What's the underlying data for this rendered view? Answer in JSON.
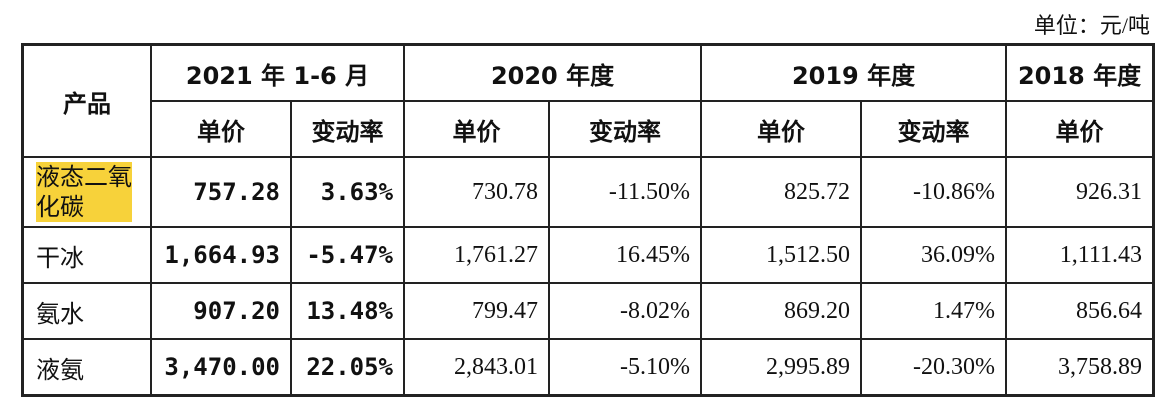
{
  "unit": "单位：元/吨",
  "table": {
    "header_groups": [
      "产品",
      "2021 年 1-6 月",
      "2020 年度",
      "2019 年度",
      "2018 年度"
    ],
    "subheaders": [
      "单价",
      "变动率",
      "单价",
      "变动率",
      "单价",
      "变动率",
      "单价"
    ],
    "rows": [
      [
        "液态二氧化碳",
        "757.28",
        "3.63%",
        "730.78",
        "-11.50%",
        "825.72",
        "-10.86%",
        "926.31"
      ],
      [
        "干冰",
        "1,664.93",
        "-5.47%",
        "1,761.27",
        "16.45%",
        "1,512.50",
        "36.09%",
        "1,111.43"
      ],
      [
        "氨水",
        "907.20",
        "13.48%",
        "799.47",
        "-8.02%",
        "869.20",
        "1.47%",
        "856.64"
      ],
      [
        "液氨",
        "3,470.00",
        "22.05%",
        "2,843.01",
        "-5.10%",
        "2,995.89",
        "-20.30%",
        "3,758.89"
      ]
    ]
  }
}
